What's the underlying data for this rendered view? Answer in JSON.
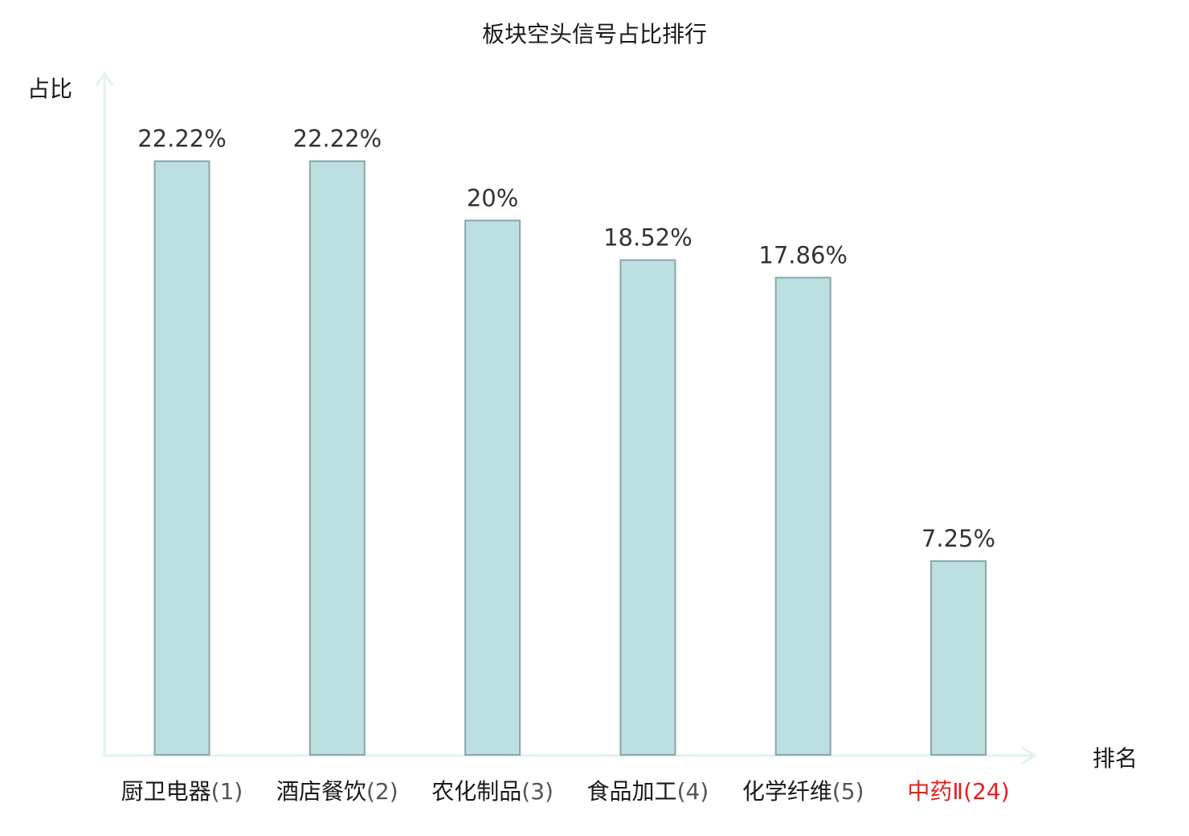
{
  "chart_data": {
    "type": "bar",
    "title": "板块空头信号占比排行",
    "xlabel": "排名",
    "ylabel": "占比",
    "categories": [
      "厨卫电器(1)",
      "酒店餐饮(2)",
      "农化制品(3)",
      "食品加工(4)",
      "化学纤维(5)",
      "中药Ⅱ(24)"
    ],
    "category_names": [
      "厨卫电器",
      "酒店餐饮",
      "农化制品",
      "食品加工",
      "化学纤维",
      "中药Ⅱ"
    ],
    "category_ranks": [
      "(1)",
      "(2)",
      "(3)",
      "(4)",
      "(5)",
      "(24)"
    ],
    "values": [
      22.22,
      22.22,
      20,
      18.52,
      17.86,
      7.25
    ],
    "value_labels": [
      "22.22%",
      "22.22%",
      "20%",
      "18.52%",
      "17.86%",
      "7.25%"
    ],
    "highlight": [
      false,
      false,
      false,
      false,
      false,
      true
    ],
    "ylim": [
      0,
      25.2
    ],
    "grid": false,
    "colors": {
      "bar_fill": "#bce0e2",
      "bar_stroke": "#8aa5a8",
      "axis": "#e0f2f0",
      "highlight_text": "#e8201c",
      "rank_text": "#555555",
      "label_text": "#1a1a1a",
      "value_text": "#333333"
    }
  }
}
